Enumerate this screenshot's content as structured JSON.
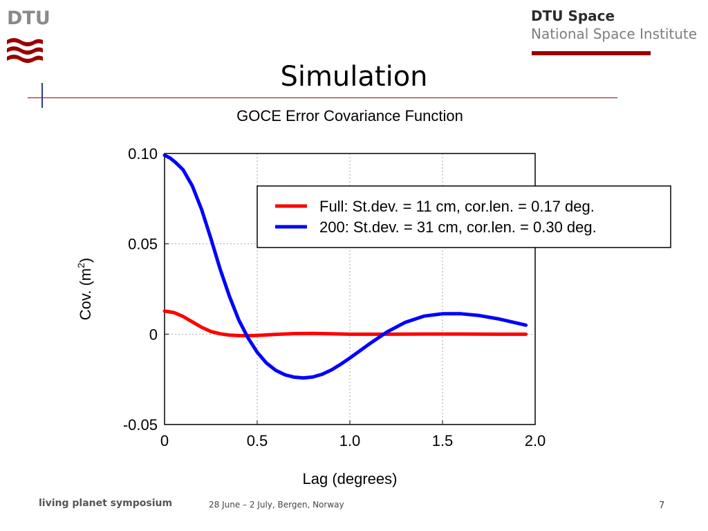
{
  "header": {
    "logo_text": "DTU",
    "institute_line1": "DTU Space",
    "institute_line2": "National Space Institute",
    "brand_color": "#990000"
  },
  "slide": {
    "title": "Simulation"
  },
  "chart_data": {
    "type": "line",
    "title": "GOCE Error Covariance Function",
    "xlabel": "Lag (degrees)",
    "ylabel_main": "Cov. (m",
    "ylabel_sup": "2",
    "ylabel_end": ")",
    "xlim": [
      0,
      2.0
    ],
    "ylim": [
      -0.05,
      0.1
    ],
    "grid": true,
    "legend_position": "top-right",
    "x_ticks": [
      {
        "value": 0,
        "label": "0"
      },
      {
        "value": 0.5,
        "label": "0.5"
      },
      {
        "value": 1.0,
        "label": "1.0"
      },
      {
        "value": 1.5,
        "label": "1.5"
      },
      {
        "value": 2.0,
        "label": "2.0"
      }
    ],
    "y_ticks": [
      {
        "value": -0.05,
        "label": "-0.05"
      },
      {
        "value": 0,
        "label": "0"
      },
      {
        "value": 0.05,
        "label": "0.05"
      },
      {
        "value": 0.1,
        "label": "0.10"
      }
    ],
    "series": [
      {
        "name": "Full: St.dev. = 11 cm, cor.len. = 0.17 deg.",
        "color": "#ff0000",
        "x": [
          0,
          0.05,
          0.1,
          0.15,
          0.2,
          0.25,
          0.3,
          0.35,
          0.4,
          0.45,
          0.5,
          0.55,
          0.6,
          0.7,
          0.8,
          0.9,
          1.0,
          1.2,
          1.4,
          1.6,
          1.8,
          1.95
        ],
        "y": [
          0.0128,
          0.012,
          0.0098,
          0.0068,
          0.0038,
          0.0015,
          0.0002,
          -0.0005,
          -0.0008,
          -0.0009,
          -0.0007,
          -0.0004,
          -0.0001,
          0.0003,
          0.0004,
          0.0002,
          0.0,
          0.0,
          0.0001,
          0.0001,
          0.0,
          0.0
        ]
      },
      {
        "name": "200: St.dev. = 31 cm, cor.len. = 0.30 deg.",
        "color": "#0000ff",
        "x": [
          0,
          0.03,
          0.06,
          0.1,
          0.15,
          0.2,
          0.25,
          0.3,
          0.35,
          0.4,
          0.45,
          0.5,
          0.55,
          0.6,
          0.65,
          0.7,
          0.75,
          0.8,
          0.85,
          0.9,
          0.95,
          1.0,
          1.1,
          1.2,
          1.3,
          1.4,
          1.5,
          1.6,
          1.7,
          1.8,
          1.9,
          1.95
        ],
        "y": [
          0.099,
          0.0975,
          0.095,
          0.091,
          0.082,
          0.069,
          0.053,
          0.036,
          0.021,
          0.008,
          -0.002,
          -0.01,
          -0.016,
          -0.02,
          -0.0225,
          -0.0238,
          -0.0242,
          -0.0237,
          -0.0222,
          -0.0198,
          -0.0167,
          -0.0132,
          -0.0058,
          0.0012,
          0.0066,
          0.01,
          0.0113,
          0.0113,
          0.0103,
          0.0085,
          0.0062,
          0.005
        ]
      }
    ]
  },
  "footer": {
    "event": "living planet symposium",
    "dates": "28 June – 2 July, Bergen, Norway",
    "page": "7"
  }
}
